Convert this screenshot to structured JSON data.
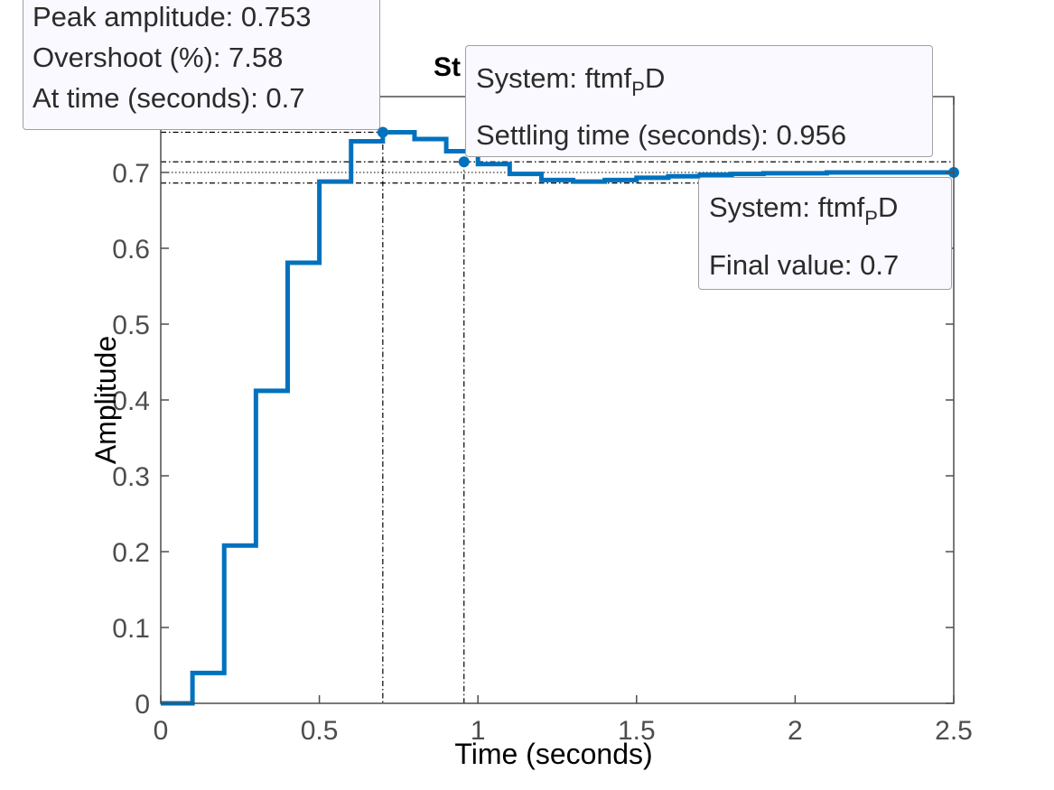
{
  "chart_data": {
    "type": "line",
    "title": "St",
    "xlabel": "Time (seconds)",
    "ylabel": "Amplitude",
    "xlim": [
      0,
      2.5
    ],
    "ylim": [
      0,
      0.8
    ],
    "grid": false,
    "x_ticks": [
      "0",
      "0.5",
      "1",
      "1.5",
      "2",
      "2.5"
    ],
    "y_ticks": [
      "0",
      "0.1",
      "0.2",
      "0.3",
      "0.4",
      "0.5",
      "0.6",
      "0.7"
    ],
    "x_tick_values": [
      0,
      0.5,
      1,
      1.5,
      2,
      2.5
    ],
    "y_tick_values": [
      0,
      0.1,
      0.2,
      0.3,
      0.4,
      0.5,
      0.6,
      0.7
    ],
    "series_color": "#0072bd",
    "step_response": {
      "dt": 0.1,
      "x": [
        0,
        0.1,
        0.2,
        0.3,
        0.4,
        0.5,
        0.6,
        0.7,
        0.8,
        0.9,
        1.0,
        1.1,
        1.2,
        1.3,
        1.4,
        1.5,
        1.6,
        1.7,
        1.8,
        1.9,
        2.0,
        2.1,
        2.2,
        2.3,
        2.4,
        2.5
      ],
      "y": [
        0,
        0.04,
        0.208,
        0.412,
        0.581,
        0.688,
        0.741,
        0.753,
        0.744,
        0.728,
        0.711,
        0.698,
        0.69,
        0.688,
        0.69,
        0.693,
        0.695,
        0.697,
        0.698,
        0.699,
        0.699,
        0.7,
        0.7,
        0.7,
        0.7,
        0.7
      ]
    },
    "reference_lines": {
      "peak_amplitude": 0.753,
      "final_value": 0.7,
      "settling_band_upper": 0.714,
      "settling_band_lower": 0.686,
      "peak_time": 0.7,
      "settling_time": 0.956
    },
    "markers": [
      {
        "x": 0.7,
        "y": 0.753
      },
      {
        "x": 0.956,
        "y": 0.714
      },
      {
        "x": 2.5,
        "y": 0.7
      }
    ]
  },
  "tooltips": {
    "peak": {
      "line1": "Peak amplitude: 0.753",
      "line2": "Overshoot (%): 7.58",
      "line3": "At time (seconds): 0.7"
    },
    "settling": {
      "system_prefix": "System: ftmf",
      "system_sub": "P",
      "system_suffix": "D",
      "line2": "Settling time (seconds): 0.956"
    },
    "final": {
      "system_prefix": "System: ftmf",
      "system_sub": "P",
      "system_suffix": "D",
      "line2": "Final value: 0.7"
    }
  }
}
